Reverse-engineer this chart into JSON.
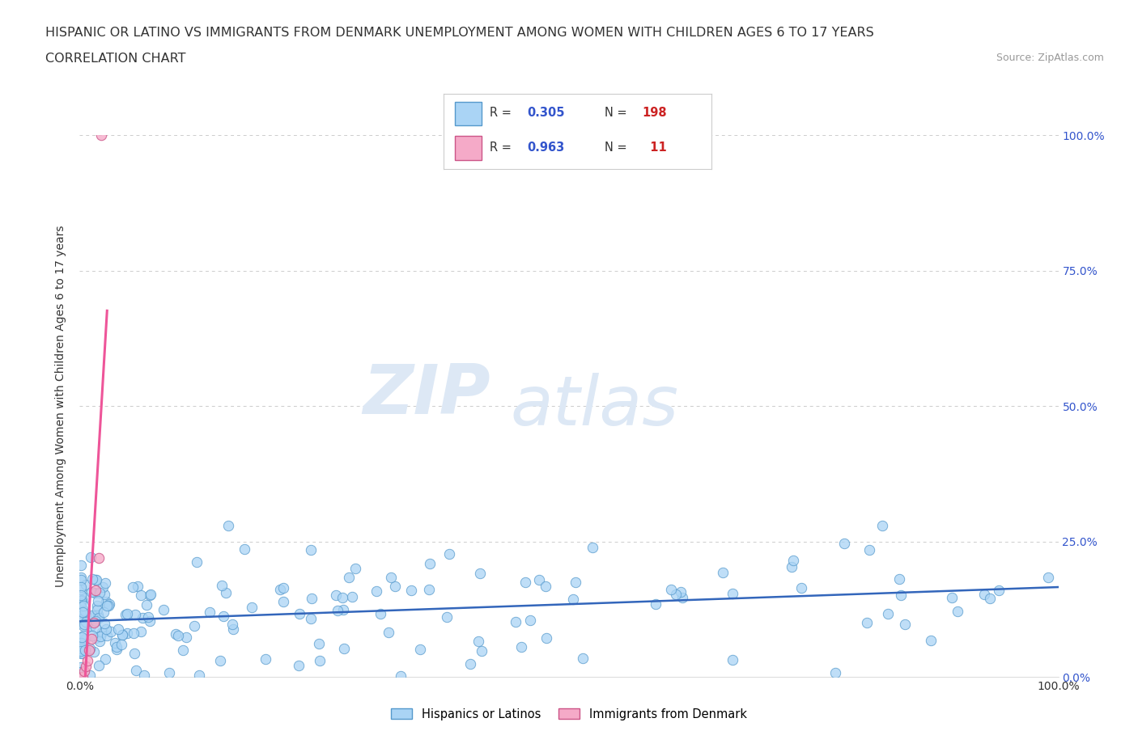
{
  "title_line1": "HISPANIC OR LATINO VS IMMIGRANTS FROM DENMARK UNEMPLOYMENT AMONG WOMEN WITH CHILDREN AGES 6 TO 17 YEARS",
  "title_line2": "CORRELATION CHART",
  "source_text": "Source: ZipAtlas.com",
  "ylabel": "Unemployment Among Women with Children Ages 6 to 17 years",
  "xlim": [
    0,
    1.0
  ],
  "ylim": [
    0,
    1.0
  ],
  "xtick_positions": [
    0.0,
    1.0
  ],
  "xtick_labels": [
    "0.0%",
    "100.0%"
  ],
  "ytick_positions": [
    0.0,
    0.25,
    0.5,
    0.75,
    1.0
  ],
  "ytick_labels": [
    "0.0%",
    "25.0%",
    "50.0%",
    "75.0%",
    "100.0%"
  ],
  "grid_color": "#cccccc",
  "background_color": "#ffffff",
  "watermark_text1": "ZIP",
  "watermark_text2": "atlas",
  "watermark_color": "#dde8f5",
  "series1_color": "#aad4f5",
  "series1_edge_color": "#5599cc",
  "series1_label": "Hispanics or Latinos",
  "series1_R": 0.305,
  "series1_N": 198,
  "series1_line_color": "#3366bb",
  "series2_color": "#f5aac8",
  "series2_edge_color": "#cc5588",
  "series2_label": "Immigrants from Denmark",
  "series2_R": 0.963,
  "series2_N": 11,
  "series2_line_color": "#ee5599",
  "legend_R_color": "#3355cc",
  "legend_N_color": "#cc2222",
  "title_fontsize": 11.5,
  "subtitle_fontsize": 11.5,
  "source_fontsize": 9,
  "axis_label_fontsize": 10,
  "tick_label_fontsize": 10,
  "right_tick_color": "#3355cc"
}
